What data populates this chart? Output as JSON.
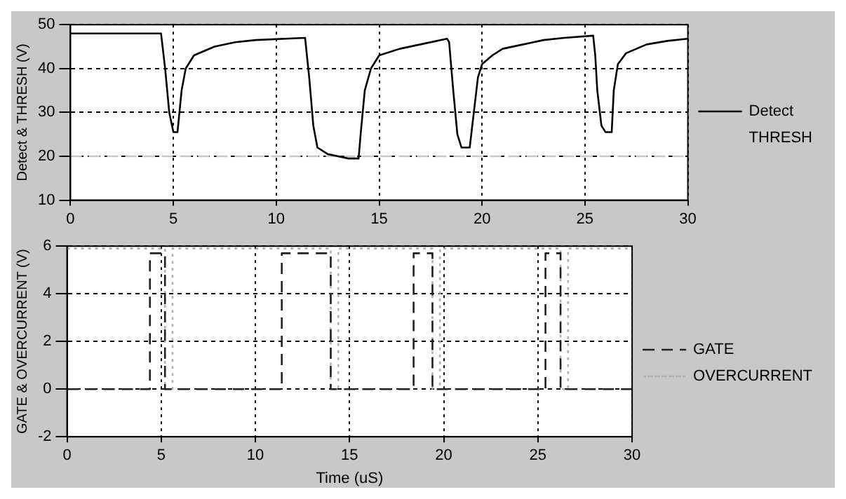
{
  "chart_data": [
    {
      "type": "line",
      "ylabel": "Detect & THRESH (V)",
      "xlim": [
        0,
        30
      ],
      "xticks": [
        0,
        5,
        10,
        15,
        20,
        25,
        30
      ],
      "ylim": [
        10,
        50
      ],
      "yticks": [
        10,
        20,
        30,
        40,
        50
      ],
      "grid": true,
      "legend": "right",
      "marker": "none",
      "series": [
        {
          "name": "Detect",
          "color": "#000000",
          "line_style": "solid",
          "x": [
            0,
            4.4,
            4.6,
            4.8,
            5.0,
            5.2,
            5.4,
            5.6,
            6,
            7,
            8,
            9,
            11.4,
            11.6,
            11.8,
            12,
            12.5,
            13,
            13.5,
            14,
            14.1,
            14.3,
            14.6,
            15,
            16,
            17,
            18.3,
            18.4,
            18.6,
            18.8,
            19,
            19.4,
            19.6,
            19.8,
            20,
            20.5,
            21,
            22,
            23,
            24,
            25.4,
            25.5,
            25.6,
            25.8,
            26,
            26.3,
            26.4,
            26.6,
            27,
            28,
            29,
            30
          ],
          "values": [
            48,
            48,
            40,
            30,
            25.5,
            25.5,
            35,
            40,
            43,
            45,
            46,
            46.5,
            47,
            38,
            27,
            22,
            20.5,
            20,
            19.5,
            19.5,
            25,
            35,
            40,
            43,
            44.5,
            45.5,
            46.8,
            46,
            35,
            25,
            22,
            22,
            30,
            38,
            41,
            43,
            44.5,
            45.5,
            46.5,
            47,
            47.5,
            43,
            35,
            27,
            25.5,
            25.5,
            35,
            41,
            43.5,
            45.5,
            46.3,
            46.8
          ]
        },
        {
          "name": "THRESH",
          "color": "#c8c8c8",
          "line_style": "dashed",
          "x": [
            0,
            30
          ],
          "values": [
            20,
            20
          ]
        }
      ]
    },
    {
      "type": "line",
      "ylabel": "GATE & OVERCURRENT (V)",
      "xlabel": "Time (uS)",
      "xlim": [
        0,
        30
      ],
      "xticks": [
        0,
        5,
        10,
        15,
        20,
        25,
        30
      ],
      "ylim": [
        -2,
        6
      ],
      "yticks": [
        -2,
        0,
        2,
        4,
        6
      ],
      "grid": true,
      "legend": "right",
      "marker": "none",
      "series": [
        {
          "name": "GATE",
          "color": "#222222",
          "line_style": "dashed",
          "x": [
            0,
            4.4,
            4.4,
            5.2,
            5.2,
            11.4,
            11.4,
            14.0,
            14.0,
            18.4,
            18.4,
            19.4,
            19.4,
            25.4,
            25.4,
            26.2,
            26.2,
            30
          ],
          "values": [
            0,
            0,
            5.7,
            5.7,
            0,
            0,
            5.7,
            5.7,
            0,
            0,
            5.7,
            5.7,
            0,
            0,
            5.7,
            5.7,
            0,
            0
          ]
        },
        {
          "name": "OVERCURRENT",
          "color": "#b0b0b0",
          "line_style": "dotted",
          "x": [
            0,
            5.2,
            5.2,
            5.6,
            5.6,
            14.0,
            14.0,
            14.4,
            14.4,
            19.4,
            19.4,
            19.8,
            19.8,
            26.2,
            26.2,
            26.6,
            26.6,
            30
          ],
          "values": [
            5.9,
            5.9,
            0,
            0,
            5.9,
            5.9,
            0,
            0,
            5.9,
            5.9,
            0,
            0,
            5.9,
            5.9,
            0,
            0,
            5.9,
            5.9
          ]
        }
      ]
    }
  ]
}
